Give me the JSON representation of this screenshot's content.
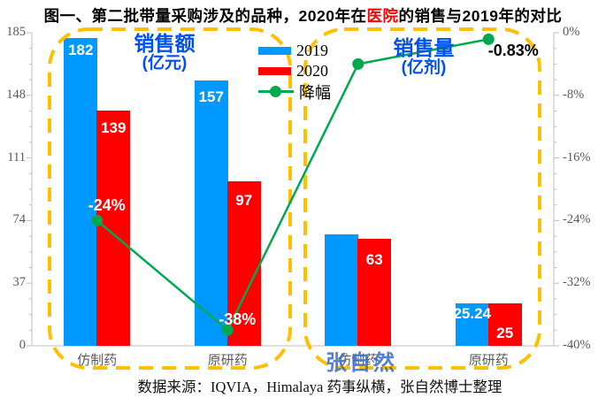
{
  "title": {
    "pre": "图一、第二批带量采购涉及的品种，2020年在",
    "highlight": "医院",
    "post": "的销售与2019年的对比"
  },
  "legend": {
    "items": [
      {
        "label": "2019",
        "type": "bar",
        "color": "#0099FF"
      },
      {
        "label": "2020",
        "type": "bar",
        "color": "#FF0000"
      },
      {
        "label": "降幅",
        "type": "line",
        "color": "#00A94F"
      }
    ]
  },
  "groups": [
    {
      "title": "销售额",
      "unit": "(亿元)"
    },
    {
      "title": "销售量",
      "unit": "(亿剂)"
    }
  ],
  "watermark": "张自然",
  "source": "数据来源：IQVIA，Himalaya 药事纵横，张自然博士整理",
  "colors": {
    "bar2019": "#0099FF",
    "bar2020": "#FF0000",
    "line": "#00A94F",
    "dashed_border": "#FFC000",
    "group_title": "#0050F0",
    "title_highlight": "#FF0000",
    "axis_text": "#595959",
    "axis_line": "#BFBFBF",
    "watermark": "#3A6AC8"
  },
  "chart_data": {
    "type": "bar+line",
    "categories": [
      "仿制药",
      "原研药",
      "仿制药",
      "原研药"
    ],
    "sections": [
      {
        "title": "销售额",
        "unit": "(亿元)",
        "categories": [
          0,
          1
        ]
      },
      {
        "title": "销售量",
        "unit": "(亿剂)",
        "categories": [
          2,
          3
        ]
      }
    ],
    "series": [
      {
        "name": "2019",
        "color": "#0099FF",
        "values": [
          182,
          157,
          66,
          25.24
        ],
        "labels": [
          "182",
          "157",
          "",
          "25.24"
        ]
      },
      {
        "name": "2020",
        "color": "#FF0000",
        "values": [
          139,
          97,
          63,
          25
        ],
        "labels": [
          "139",
          "97",
          "63",
          "25"
        ]
      }
    ],
    "line": {
      "name": "降幅",
      "color": "#00A94F",
      "values": [
        -24,
        -38,
        -4,
        -0.83
      ],
      "labels": [
        "-24%",
        "-38%",
        "",
        "-0.83%"
      ]
    },
    "axes": {
      "left": {
        "ticks": [
          0,
          37,
          74,
          111,
          148,
          185
        ],
        "min": 0,
        "max": 185
      },
      "right": {
        "ticks": [
          "0%",
          "-8%",
          "-16%",
          "-24%",
          "-32%",
          "-40%"
        ],
        "min": -40,
        "max": 0
      }
    },
    "grid": false,
    "legend_position": "top-center"
  }
}
